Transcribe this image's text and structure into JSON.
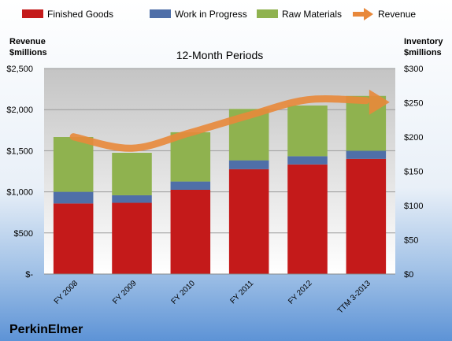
{
  "chart_data": {
    "type": "bar",
    "title": "12-Month Periods",
    "company": "PerkinElmer",
    "categories": [
      "FY 2008",
      "FY 2009",
      "FY 2010",
      "FY 2011",
      "FY 2012",
      "TTM 3-2013"
    ],
    "left_axis": {
      "label_line1": "Revenue",
      "label_line2": "$millions",
      "ylim": [
        0,
        2500
      ],
      "ticks": [
        0,
        500,
        1000,
        1500,
        2000,
        2500
      ],
      "tick_labels": [
        "$-",
        "$500",
        "$1,000",
        "$1,500",
        "$2,000",
        "$2,500"
      ]
    },
    "right_axis": {
      "label_line1": "Inventory",
      "label_line2": "$millions",
      "ylim": [
        0,
        300
      ],
      "ticks": [
        0,
        50,
        100,
        150,
        200,
        250,
        300
      ],
      "tick_labels": [
        "$0",
        "$50",
        "$100",
        "$150",
        "$200",
        "$250",
        "$300"
      ]
    },
    "series": [
      {
        "name": "Finished Goods",
        "axis": "right",
        "color": "#c41a1a",
        "values": [
          103,
          104,
          123,
          153,
          160,
          168
        ]
      },
      {
        "name": "Work in Progress",
        "axis": "right",
        "color": "#4f6fa8",
        "values": [
          17,
          11,
          12,
          13,
          12,
          12
        ]
      },
      {
        "name": "Raw Materials",
        "axis": "right",
        "color": "#8fb24f",
        "values": [
          80,
          62,
          72,
          75,
          74,
          80
        ]
      }
    ],
    "line_series": {
      "name": "Revenue",
      "axis": "left",
      "color": "#e8883a",
      "values": [
        1670,
        1530,
        1720,
        1930,
        2120,
        2110
      ]
    },
    "grid": true,
    "legend_position": "top"
  }
}
